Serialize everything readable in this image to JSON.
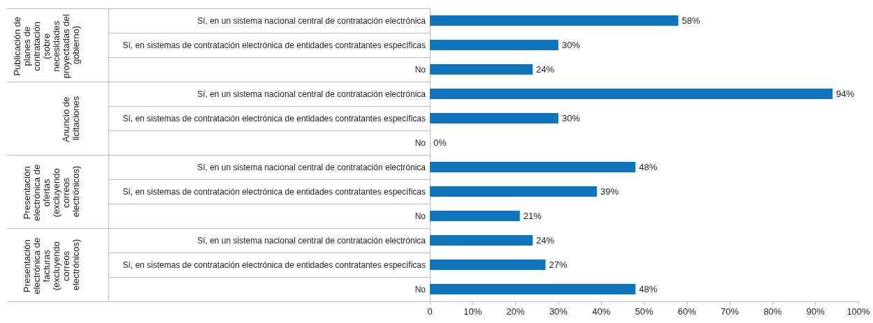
{
  "chart_data": {
    "type": "bar",
    "orientation": "horizontal",
    "categories": [
      "Sí, en un sistema nacional central de contratación electrónica",
      "Sí, en sistemas de contratación electrónica de entidades contratantes específicas",
      "No",
      "Sí, en un sistema nacional central de contratación electrónica",
      "Sí, en sistemas de contratación electrónica de entidades contratantes específicas",
      "No",
      "Sí, en un sistema nacional central de contratación electrónica",
      "Sí, en sistemas de contratación electrónica de entidades contratantes específicas",
      "No",
      "Sí, en un sistema nacional central de contratación electrónica",
      "Sí, en sistemas de contratación electrónica de entidades contratantes específicas",
      "No"
    ],
    "values": [
      58,
      30,
      24,
      94,
      30,
      0,
      48,
      39,
      21,
      24,
      27,
      48
    ],
    "value_labels": [
      "58%",
      "30%",
      "24%",
      "94%",
      "30%",
      "0%",
      "48%",
      "39%",
      "21%",
      "24%",
      "27%",
      "48%"
    ],
    "color": "#0f75bc",
    "annotations": [
      "Publicación de planes de contratación (sobre necesidades proyectadas del gobierno)",
      "Anuncio de licitaciones",
      "Presentación electrónica de ofertas (excluyendo correos electrónicos)",
      "Presentación electrónica de facturas (excluyendo correos electrónicos)"
    ],
    "xlim": [
      0,
      100
    ],
    "xticks": [
      0,
      {
        "value": 10,
        "label": "10%"
      },
      {
        "value": 20,
        "label": "20%"
      },
      {
        "value": 30,
        "label": "30%"
      },
      {
        "value": 40,
        "label": "40%"
      },
      {
        "value": 50,
        "label": "50%"
      },
      {
        "value": 60,
        "label": "60%"
      },
      {
        "value": 70,
        "label": "70%"
      },
      {
        "value": 80,
        "label": "80%"
      },
      {
        "value": 90,
        "label": "90%"
      },
      {
        "value": 100,
        "label": "100%"
      }
    ],
    "grid": false
  }
}
